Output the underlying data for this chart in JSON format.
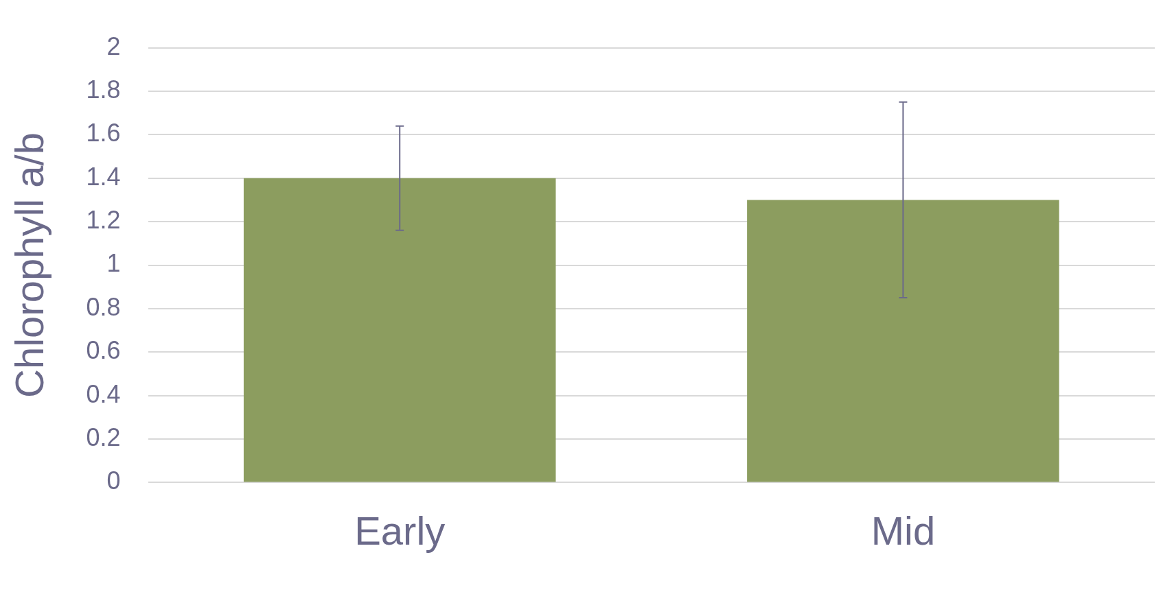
{
  "chart_data": {
    "type": "bar",
    "ylabel": "Chlorophyll a/b",
    "categories": [
      "Early",
      "Mid"
    ],
    "values": [
      1.4,
      1.3
    ],
    "color": "#8c9d5f",
    "errors": [
      0.24,
      0.45
    ],
    "ylim": [
      0,
      2
    ],
    "yticks": [
      0,
      0.2,
      0.4,
      0.6,
      0.8,
      1,
      1.2,
      1.4,
      1.6,
      1.8,
      2
    ],
    "grid": "y",
    "legend": false
  }
}
